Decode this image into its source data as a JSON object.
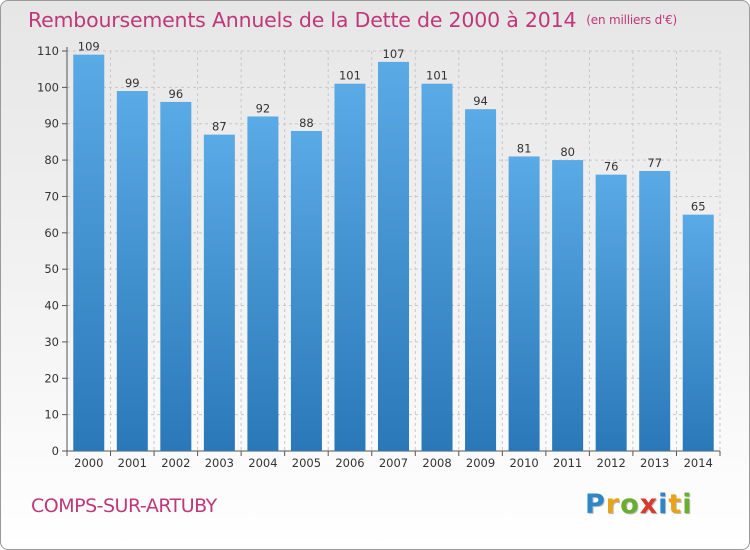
{
  "header": {
    "title": "Remboursements Annuels de la Dette de 2000 à 2014",
    "unit": "(en milliers d'€)"
  },
  "footer": {
    "commune": "COMPS-SUR-ARTUBY",
    "logo": "Proxiti"
  },
  "colors": {
    "bar_top": "#5aaae6",
    "bar_bottom": "#2a78b8",
    "title": "#c0377a"
  },
  "chart_data": {
    "type": "bar",
    "title": "Remboursements Annuels de la Dette de 2000 à 2014",
    "subtitle": "(en milliers d'€)",
    "xlabel": "",
    "ylabel": "",
    "categories": [
      "2000",
      "2001",
      "2002",
      "2003",
      "2004",
      "2005",
      "2006",
      "2007",
      "2008",
      "2009",
      "2010",
      "2011",
      "2012",
      "2013",
      "2014"
    ],
    "values": [
      109,
      99,
      96,
      87,
      92,
      88,
      101,
      107,
      101,
      94,
      81,
      80,
      76,
      77,
      65
    ],
    "ylim": [
      0,
      110
    ],
    "yticks": [
      0,
      10,
      20,
      30,
      40,
      50,
      60,
      70,
      80,
      90,
      100,
      110
    ],
    "grid": true,
    "legend": "none"
  }
}
